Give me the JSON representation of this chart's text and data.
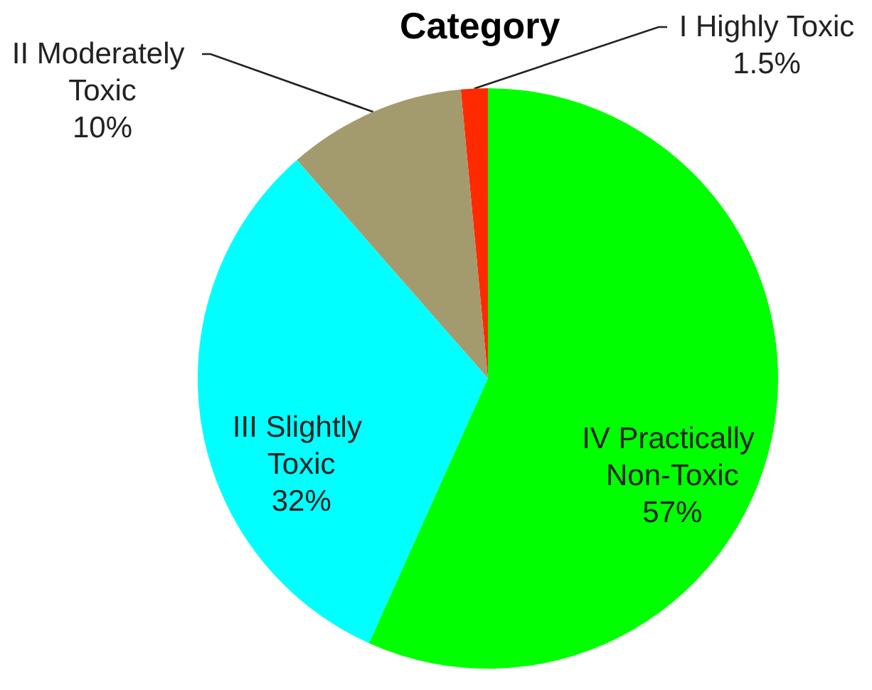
{
  "chart_data": {
    "type": "pie",
    "title": "Category",
    "categories": [
      "I Highly Toxic",
      "II Moderately Toxic",
      "III Slightly Toxic",
      "IV Practically Non-Toxic"
    ],
    "values": [
      1.5,
      10,
      32,
      57
    ],
    "colors": [
      "#ff2a00",
      "#a39a6e",
      "#00ffff",
      "#00ff00"
    ],
    "value_labels": [
      "1.5%",
      "10%",
      "32%",
      "57%"
    ]
  }
}
